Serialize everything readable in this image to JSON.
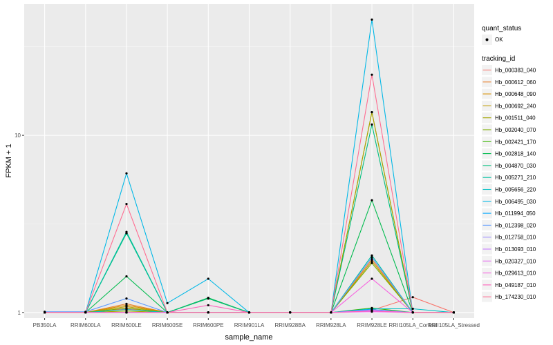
{
  "chart_data": {
    "type": "line",
    "title": "",
    "xlabel": "sample_name",
    "ylabel": "FPKM + 1",
    "y_scale": "log10",
    "ylim": [
      0.93,
      55
    ],
    "y_ticks": [
      1,
      10
    ],
    "y_tick_labels": [
      "1",
      "10"
    ],
    "categories": [
      "PB350LA",
      "RRIM600LA",
      "RRIM600LE",
      "RRIM600SE",
      "RRIM600PE",
      "RRIM901LA",
      "RRIM928BA",
      "RRIM928LA",
      "RRIM928LE",
      "RRII105LA_Control",
      "RRII105LA_Stressed"
    ],
    "legend_shape": {
      "title": "quant_status",
      "entries": [
        "OK"
      ]
    },
    "legend_title": "tracking_id",
    "series": [
      {
        "name": "Hb_000383_040",
        "color": "#F8766D",
        "values": [
          1,
          1,
          1.05,
          1,
          1,
          1,
          1,
          1,
          1.03,
          1.22,
          1
        ]
      },
      {
        "name": "Hb_000612_060",
        "color": "#EA8331",
        "values": [
          1,
          1,
          1.12,
          1,
          1,
          1,
          1,
          1,
          2.0,
          1,
          1
        ]
      },
      {
        "name": "Hb_000648_090",
        "color": "#D89000",
        "values": [
          1,
          1,
          1.1,
          1,
          1,
          1,
          1,
          1,
          13.5,
          1,
          1
        ]
      },
      {
        "name": "Hb_000692_240",
        "color": "#C09B00",
        "values": [
          1,
          1,
          1.08,
          1,
          1,
          1,
          1,
          1,
          1.95,
          1,
          1
        ]
      },
      {
        "name": "Hb_001511_040",
        "color": "#A3A500",
        "values": [
          1,
          1,
          1.02,
          1,
          1,
          1,
          1,
          1,
          13.5,
          1,
          1
        ]
      },
      {
        "name": "Hb_002040_070",
        "color": "#7CAE00",
        "values": [
          1,
          1,
          1.06,
          1,
          1.2,
          1,
          1,
          1,
          1.9,
          1,
          1
        ]
      },
      {
        "name": "Hb_002421_170",
        "color": "#39B600",
        "values": [
          1,
          1,
          1.0,
          1,
          1,
          1,
          1,
          1,
          1.06,
          1,
          1
        ]
      },
      {
        "name": "Hb_002818_140",
        "color": "#00BB4E",
        "values": [
          1,
          1,
          1.6,
          1,
          1.21,
          1,
          1,
          1,
          4.3,
          1,
          1
        ]
      },
      {
        "name": "Hb_004870_030",
        "color": "#00BF7D",
        "values": [
          1,
          1,
          2.8,
          1,
          1.2,
          1,
          1,
          1,
          11.5,
          1,
          1
        ]
      },
      {
        "name": "Hb_005271_210",
        "color": "#00C1A3",
        "values": [
          1,
          1,
          2.85,
          1,
          1,
          1,
          1,
          1,
          2.1,
          1,
          1
        ]
      },
      {
        "name": "Hb_005656_220",
        "color": "#00BFC4",
        "values": [
          1,
          1,
          1.04,
          1,
          1,
          1,
          1,
          1,
          1.05,
          1.05,
          1
        ]
      },
      {
        "name": "Hb_006495_030",
        "color": "#00B8E7",
        "values": [
          1,
          1,
          6.1,
          1.13,
          1.55,
          1,
          1,
          1,
          45,
          1,
          1
        ]
      },
      {
        "name": "Hb_011994_050",
        "color": "#00A9FF",
        "values": [
          1,
          1,
          1.0,
          1,
          1,
          1,
          1,
          1,
          1.04,
          1,
          1
        ]
      },
      {
        "name": "Hb_012398_020",
        "color": "#619CFF",
        "values": [
          1.01,
          1.01,
          1.2,
          1,
          1,
          1,
          1,
          1,
          2.05,
          1,
          1
        ]
      },
      {
        "name": "Hb_012758_010",
        "color": "#9E8FFF",
        "values": [
          1,
          1,
          1.0,
          1,
          1,
          1,
          1,
          1,
          1.02,
          1,
          1
        ]
      },
      {
        "name": "Hb_013093_010",
        "color": "#C77CFF",
        "values": [
          1,
          1,
          1.0,
          1,
          1,
          1,
          1,
          1,
          1.03,
          1,
          1
        ]
      },
      {
        "name": "Hb_020327_010",
        "color": "#E76BF3",
        "values": [
          1,
          1,
          1.0,
          1,
          1,
          1,
          1,
          1,
          1.01,
          1,
          1
        ]
      },
      {
        "name": "Hb_029613_010",
        "color": "#F763E0",
        "values": [
          1,
          1,
          1.0,
          1,
          1,
          1,
          1,
          1,
          1.55,
          1,
          1
        ]
      },
      {
        "name": "Hb_049187_010",
        "color": "#FF62BC",
        "values": [
          1,
          1,
          1.0,
          1,
          1.1,
          1,
          1,
          1,
          1.02,
          1,
          1
        ]
      },
      {
        "name": "Hb_174230_010",
        "color": "#FF6C91",
        "values": [
          1,
          1,
          4.1,
          1,
          1,
          1,
          1,
          1,
          22,
          1,
          1
        ]
      }
    ]
  }
}
